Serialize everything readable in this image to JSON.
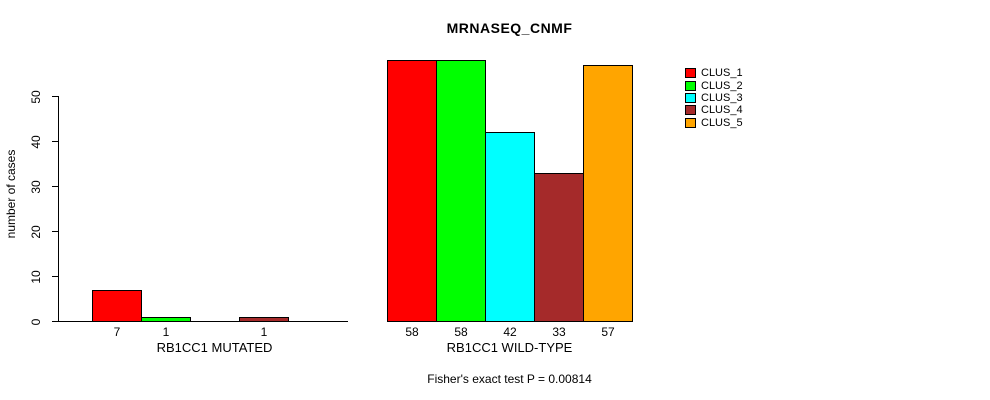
{
  "chart_data": {
    "type": "bar",
    "title": "MRNASEQ_CNMF",
    "ylabel": "number of cases",
    "ylim": [
      0,
      58
    ],
    "yticks": [
      0,
      10,
      20,
      30,
      40,
      50
    ],
    "grid": false,
    "legend_position": "top-right",
    "categories": [
      "RB1CC1 MUTATED",
      "RB1CC1 WILD-TYPE"
    ],
    "series": [
      {
        "name": "CLUS_1",
        "color": "#ff0000",
        "values": [
          7,
          58
        ]
      },
      {
        "name": "CLUS_2",
        "color": "#00ff00",
        "values": [
          1,
          58
        ]
      },
      {
        "name": "CLUS_3",
        "color": "#00ffff",
        "values": [
          0,
          42
        ]
      },
      {
        "name": "CLUS_4",
        "color": "#a52a2a",
        "values": [
          1,
          33
        ]
      },
      {
        "name": "CLUS_5",
        "color": "#ffa500",
        "values": [
          0,
          57
        ]
      }
    ],
    "bar_value_labels": [
      [
        "7",
        "1",
        "",
        "1",
        ""
      ],
      [
        "58",
        "58",
        "42",
        "33",
        "57"
      ]
    ],
    "caption": "Fisher's exact test P = 0.00814",
    "axis_color": "#000000"
  }
}
